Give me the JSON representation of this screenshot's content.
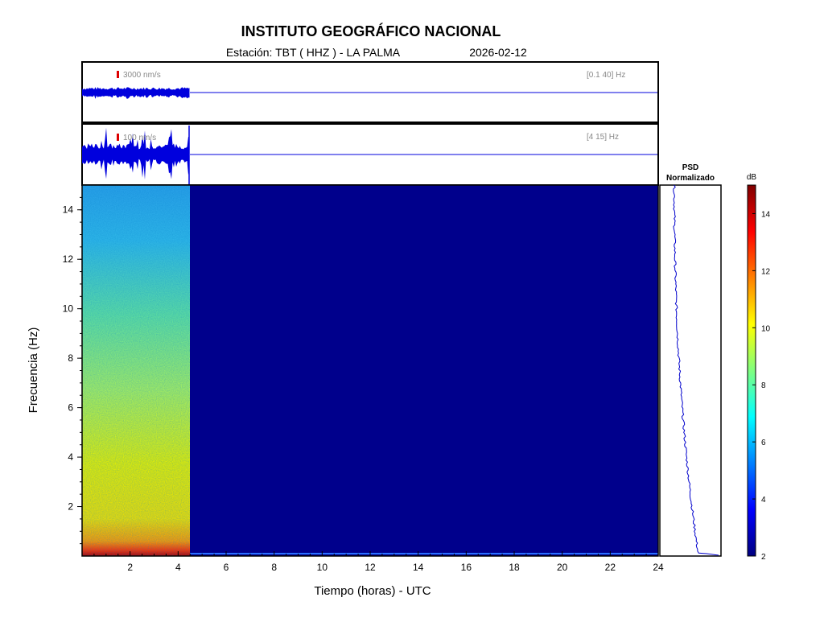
{
  "header": {
    "title": "INSTITUTO GEOGRÁFICO NACIONAL",
    "station_label": "Estación:  TBT ( HHZ ) - LA PALMA",
    "date": "2026-02-12"
  },
  "chart_data": [
    {
      "type": "line",
      "panel": "seismogram-broadband",
      "scale_label": "3000 nm/s",
      "band_label": "[0.1 40] Hz",
      "x_range": [
        0,
        24
      ],
      "data_until_hours": 4.5
    },
    {
      "type": "line",
      "panel": "seismogram-filtered",
      "scale_label": "100 nm/s",
      "band_label": "[4 15] Hz",
      "x_range": [
        0,
        24
      ],
      "data_until_hours": 4.5
    },
    {
      "type": "heatmap",
      "panel": "spectrogram",
      "xlabel": "Tiempo (horas) - UTC",
      "ylabel": "Frecuencia  (Hz)",
      "x_ticks": [
        2,
        4,
        6,
        8,
        10,
        12,
        14,
        16,
        18,
        20,
        22,
        24
      ],
      "y_ticks": [
        2,
        4,
        6,
        8,
        10,
        12,
        14
      ],
      "xlim": [
        0,
        24
      ],
      "ylim": [
        0,
        15
      ],
      "data_until_hours": 4.5
    },
    {
      "type": "line",
      "panel": "psd",
      "title_line1": "PSD",
      "title_line2": "Normalizado"
    },
    {
      "type": "heatmap",
      "panel": "colorbar",
      "unit": "dB",
      "ticks": [
        2,
        4,
        6,
        8,
        10,
        12,
        14
      ],
      "range": [
        2,
        15
      ]
    }
  ]
}
